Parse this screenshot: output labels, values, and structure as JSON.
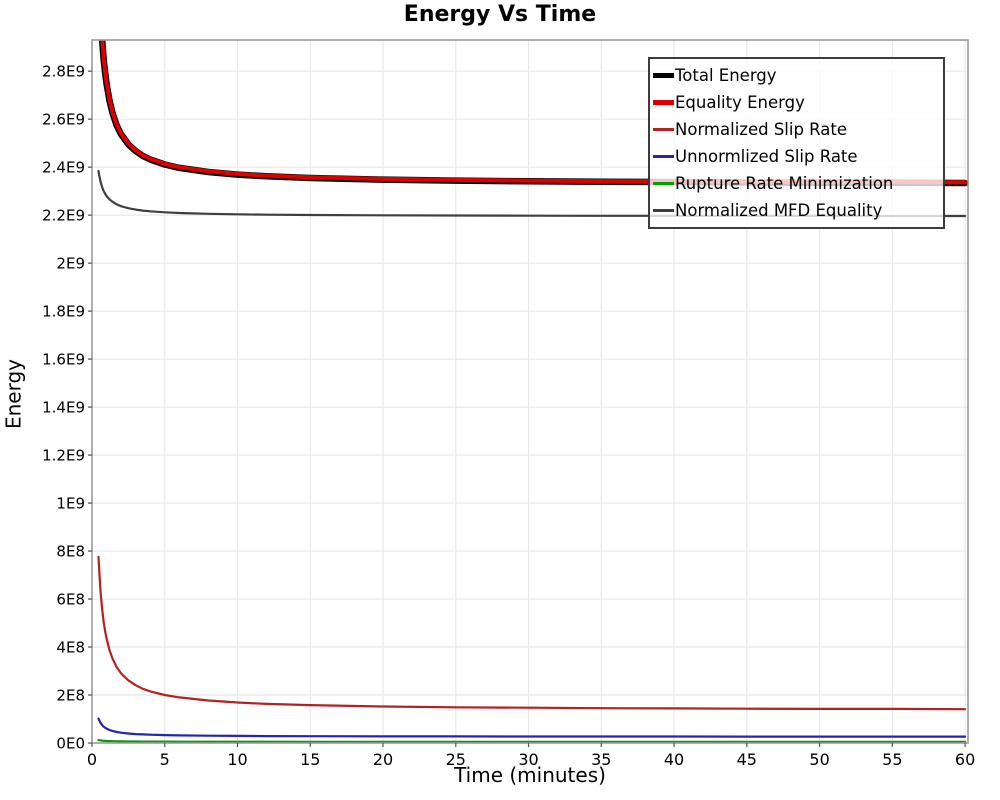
{
  "chart_data": {
    "type": "line",
    "title": "Energy Vs Time",
    "xlabel": "Time (minutes)",
    "ylabel": "Energy",
    "xlim": [
      0,
      60.2
    ],
    "ylim": [
      0,
      2930000000.0
    ],
    "grid": true,
    "legend_position": "upper right",
    "x_ticks": {
      "values": [
        0,
        5,
        10,
        15,
        20,
        25,
        30,
        35,
        40,
        45,
        50,
        55,
        60
      ],
      "labels": [
        "0",
        "5",
        "10",
        "15",
        "20",
        "25",
        "30",
        "35",
        "40",
        "45",
        "50",
        "55",
        "60"
      ]
    },
    "y_ticks": {
      "values": [
        0,
        200000000.0,
        400000000.0,
        600000000.0,
        800000000.0,
        1000000000.0,
        1200000000.0,
        1400000000.0,
        1600000000.0,
        1800000000.0,
        2000000000.0,
        2200000000.0,
        2400000000.0,
        2600000000.0,
        2800000000.0
      ],
      "labels": [
        "0E0",
        "2E8",
        "4E8",
        "6E8",
        "8E8",
        "1E9",
        "1.2E9",
        "1.4E9",
        "1.6E9",
        "1.8E9",
        "2E9",
        "2.2E9",
        "2.4E9",
        "2.6E9",
        "2.8E9"
      ]
    },
    "x": [
      0.45,
      0.5,
      0.6,
      0.7,
      0.8,
      0.9,
      1,
      1.2,
      1.4,
      1.7,
      2,
      2.5,
      3,
      3.5,
      4,
      5,
      6,
      8,
      10,
      12,
      15,
      20,
      25,
      30,
      35,
      40,
      45,
      50,
      55,
      60
    ],
    "series": [
      {
        "name": "Total Energy",
        "color": "#000000",
        "width": 6.5,
        "values": [
          3260000000.0,
          3167000000.0,
          3027000000.0,
          2927000000.0,
          2852000000.0,
          2794000000.0,
          2747000000.0,
          2677000000.0,
          2627000000.0,
          2574000000.0,
          2537000000.0,
          2495000000.0,
          2467000000.0,
          2447000000.0,
          2432000000.0,
          2411000000.0,
          2397000000.0,
          2380000000.0,
          2369000000.0,
          2362000000.0,
          2355000000.0,
          2348000000.0,
          2344000000.0,
          2341000000.0,
          2339000000.0,
          2338000000.0,
          2336000000.0,
          2335000000.0,
          2335000000.0,
          2334000000.0
        ]
      },
      {
        "name": "Equality Energy",
        "color": "#dd0000",
        "width": 4,
        "values": [
          3263000000.0,
          3170000000.0,
          3030000000.0,
          2930000000.0,
          2855000000.0,
          2797000000.0,
          2750000000.0,
          2680000000.0,
          2630000000.0,
          2577000000.0,
          2540000000.0,
          2498000000.0,
          2470000000.0,
          2450000000.0,
          2435000000.0,
          2414000000.0,
          2400000000.0,
          2383000000.0,
          2372000000.0,
          2365000000.0,
          2358000000.0,
          2351000000.0,
          2347000000.0,
          2344000000.0,
          2342000000.0,
          2341000000.0,
          2339000000.0,
          2338000000.0,
          2338000000.0,
          2337000000.0
        ]
      },
      {
        "name": "Normalized Slip Rate",
        "color": "#b22222",
        "width": 2.2,
        "values": [
          776000000.0,
          714000000.0,
          622000000.0,
          556000000.0,
          506000000.0,
          467000000.0,
          435000000.0,
          387000000.0,
          353000000.0,
          316000000.0,
          290000000.0,
          261000000.0,
          241000000.0,
          226000000.0,
          215000000.0,
          200000000.0,
          190000000.0,
          177000000.0,
          169000000.0,
          163000000.0,
          158000000.0,
          152000000.0,
          149000000.0,
          147000000.0,
          145000000.0,
          144000000.0,
          143000000.0,
          142000000.0,
          142000000.0,
          141000000.0
        ]
      },
      {
        "name": "Unnormlized Slip Rate",
        "color": "#2424b4",
        "width": 2.2,
        "values": [
          101600000.0,
          94000000.0,
          82700000.0,
          74600000.0,
          68500000.0,
          63800000.0,
          60000000.0,
          54300000.0,
          50300000.0,
          46000000.0,
          43000000.0,
          39600000.0,
          37300000.0,
          35700000.0,
          34500000.0,
          32800000.0,
          31700000.0,
          30300000.0,
          29400000.0,
          28800000.0,
          28300000.0,
          27700000.0,
          27400000.0,
          27100000.0,
          27000000.0,
          26900000.0,
          26800000.0,
          26700000.0,
          26600000.0,
          26600000.0
        ]
      },
      {
        "name": "Rupture Rate Minimization",
        "color": "#00a000",
        "width": 2.2,
        "values": [
          12600000.0,
          11800000.0,
          10700000.0,
          9900000.0,
          9300000.0,
          8800000.0,
          8400000.0,
          7800000.0,
          7400000.0,
          7000000.0,
          6700000.0,
          6400000.0,
          6100000.0,
          6000000.0,
          5900000.0,
          5700000.0,
          5600000.0,
          5400000.0,
          5300000.0,
          5300000.0,
          5200000.0,
          5200000.0,
          5100000.0,
          5100000.0,
          5100000.0,
          5100000.0,
          5100000.0,
          5100000.0,
          5100000.0,
          5100000.0
        ]
      },
      {
        "name": "Normalized MFD Equality",
        "color": "#3f3f3f",
        "width": 2.2,
        "values": [
          2384000000.0,
          2365000000.0,
          2337000000.0,
          2316000000.0,
          2301000000.0,
          2289000000.0,
          2280000000.0,
          2266000000.0,
          2256000000.0,
          2245000000.0,
          2237500000.0,
          2229000000.0,
          2223000000.0,
          2219000000.0,
          2216000000.0,
          2212000000.0,
          2209000000.0,
          2205600000.0,
          2203500000.0,
          2202000000.0,
          2200700000.0,
          2199300000.0,
          2198400000.0,
          2197800000.0,
          2197400000.0,
          2197100000.0,
          2196900000.0,
          2196700000.0,
          2196500000.0,
          2196400000.0
        ]
      }
    ],
    "colors": {
      "grid": "#e8e8e8",
      "frame": "#9b9b9b",
      "tick": "#555555",
      "background": "#ffffff"
    }
  }
}
